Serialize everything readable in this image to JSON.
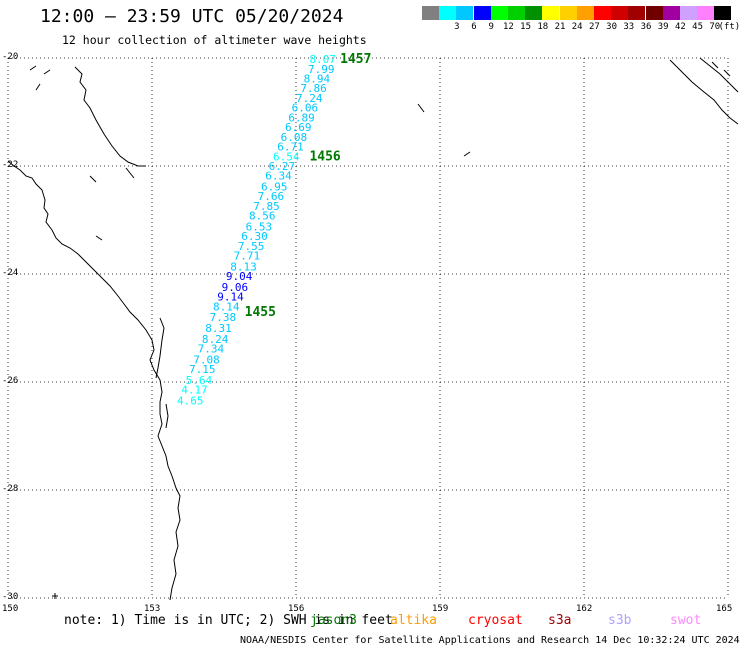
{
  "header": {
    "title": "12:00 — 23:59 UTC 05/20/2024",
    "subtitle": "12 hour collection of altimeter wave heights"
  },
  "legend": {
    "unit": "(ft)",
    "items": [
      {
        "label": "",
        "color": "#808080"
      },
      {
        "label": "3",
        "color": "#00ffff"
      },
      {
        "label": "6",
        "color": "#00c8ff"
      },
      {
        "label": "9",
        "color": "#0000ff"
      },
      {
        "label": "12",
        "color": "#00ff00"
      },
      {
        "label": "15",
        "color": "#00d000"
      },
      {
        "label": "18",
        "color": "#009000"
      },
      {
        "label": "21",
        "color": "#ffff00"
      },
      {
        "label": "24",
        "color": "#ffd000"
      },
      {
        "label": "27",
        "color": "#ffa000"
      },
      {
        "label": "30",
        "color": "#ff0000"
      },
      {
        "label": "33",
        "color": "#d00000"
      },
      {
        "label": "36",
        "color": "#a00000"
      },
      {
        "label": "39",
        "color": "#700000"
      },
      {
        "label": "42",
        "color": "#a000a0"
      },
      {
        "label": "45",
        "color": "#d0a0ff"
      },
      {
        "label": "70",
        "color": "#ff80ff"
      },
      {
        "label": "",
        "color": "#000000"
      }
    ]
  },
  "map": {
    "lat_labels": [
      "-20",
      "-22",
      "-24",
      "-26",
      "-28",
      "-30"
    ],
    "lon_labels": [
      "150",
      "153",
      "156",
      "159",
      "162",
      "165"
    ],
    "hour_labels": [
      {
        "text": "1457",
        "lon": 156.92,
        "lat": -20.02
      },
      {
        "text": "1456",
        "lon": 156.28,
        "lat": -21.82
      },
      {
        "text": "1455",
        "lon": 154.93,
        "lat": -24.7
      }
    ],
    "track_points": [
      {
        "v": "8.07",
        "lon": 156.28,
        "lat": -20.02,
        "c": "#00ffff"
      },
      {
        "v": "7.99",
        "lon": 156.25,
        "lat": -20.2,
        "c": "#00c8ff"
      },
      {
        "v": "8.94",
        "lon": 156.16,
        "lat": -20.38,
        "c": "#00c8ff"
      },
      {
        "v": "7.86",
        "lon": 156.09,
        "lat": -20.56,
        "c": "#00c8ff"
      },
      {
        "v": "7.24",
        "lon": 156.0,
        "lat": -20.74,
        "c": "#00c8ff"
      },
      {
        "v": "6.06",
        "lon": 155.91,
        "lat": -20.92,
        "c": "#00c8ff"
      },
      {
        "v": "6.89",
        "lon": 155.84,
        "lat": -21.1,
        "c": "#00c8ff"
      },
      {
        "v": "6.69",
        "lon": 155.77,
        "lat": -21.28,
        "c": "#00c8ff"
      },
      {
        "v": "6.08",
        "lon": 155.68,
        "lat": -21.46,
        "c": "#00c8ff"
      },
      {
        "v": "6.71",
        "lon": 155.61,
        "lat": -21.64,
        "c": "#00c8ff"
      },
      {
        "v": "6.54",
        "lon": 155.52,
        "lat": -21.82,
        "c": "#00ffff"
      },
      {
        "v": "6.27",
        "lon": 155.43,
        "lat": -22.0,
        "c": "#00c8ff"
      },
      {
        "v": "6.34",
        "lon": 155.36,
        "lat": -22.18,
        "c": "#00c8ff"
      },
      {
        "v": "6.95",
        "lon": 155.27,
        "lat": -22.38,
        "c": "#00c8ff"
      },
      {
        "v": "7.66",
        "lon": 155.2,
        "lat": -22.56,
        "c": "#00c8ff"
      },
      {
        "v": "7.85",
        "lon": 155.11,
        "lat": -22.74,
        "c": "#00c8ff"
      },
      {
        "v": "8.56",
        "lon": 155.02,
        "lat": -22.92,
        "c": "#00c8ff"
      },
      {
        "v": "6.53",
        "lon": 154.95,
        "lat": -23.12,
        "c": "#00c8ff"
      },
      {
        "v": "6.30",
        "lon": 154.86,
        "lat": -23.3,
        "c": "#00c8ff"
      },
      {
        "v": "7.55",
        "lon": 154.79,
        "lat": -23.48,
        "c": "#00c8ff"
      },
      {
        "v": "7.71",
        "lon": 154.7,
        "lat": -23.66,
        "c": "#00c8ff"
      },
      {
        "v": "8.13",
        "lon": 154.63,
        "lat": -23.86,
        "c": "#00c8ff"
      },
      {
        "v": "9.04",
        "lon": 154.54,
        "lat": -24.04,
        "c": "#0000ff"
      },
      {
        "v": "9.06",
        "lon": 154.45,
        "lat": -24.24,
        "c": "#0000ff"
      },
      {
        "v": "9.14",
        "lon": 154.36,
        "lat": -24.42,
        "c": "#0000ff"
      },
      {
        "v": "8.14",
        "lon": 154.27,
        "lat": -24.6,
        "c": "#00c8ff"
      },
      {
        "v": "7.38",
        "lon": 154.2,
        "lat": -24.8,
        "c": "#00c8ff"
      },
      {
        "v": "8.31",
        "lon": 154.11,
        "lat": -25.0,
        "c": "#00c8ff"
      },
      {
        "v": "8.24",
        "lon": 154.04,
        "lat": -25.2,
        "c": "#00c8ff"
      },
      {
        "v": "7.34",
        "lon": 153.95,
        "lat": -25.38,
        "c": "#00c8ff"
      },
      {
        "v": "7.08",
        "lon": 153.86,
        "lat": -25.58,
        "c": "#00c8ff"
      },
      {
        "v": "7.15",
        "lon": 153.77,
        "lat": -25.76,
        "c": "#00c8ff"
      },
      {
        "v": "5.64",
        "lon": 153.7,
        "lat": -25.96,
        "c": "#00ffff"
      },
      {
        "v": "4.17",
        "lon": 153.61,
        "lat": -26.14,
        "c": "#00ffff"
      },
      {
        "v": "4.65",
        "lon": 153.52,
        "lat": -26.34,
        "c": "#00ffff"
      }
    ]
  },
  "footer": {
    "note": "note: 1) Time is in UTC; 2) SWH is in feet",
    "satellites": [
      {
        "name": "jason3",
        "color": "#007700"
      },
      {
        "name": "altika",
        "color": "#ff9900"
      },
      {
        "name": "cryosat",
        "color": "#ff0000"
      },
      {
        "name": "s3a",
        "color": "#990000"
      },
      {
        "name": "s3b",
        "color": "#b0a0ff"
      },
      {
        "name": "swot",
        "color": "#ff88ff"
      }
    ],
    "credit": "NOAA/NESDIS Center for Satellite Applications and Research   14 Dec 10:32:24 UTC 2024"
  }
}
